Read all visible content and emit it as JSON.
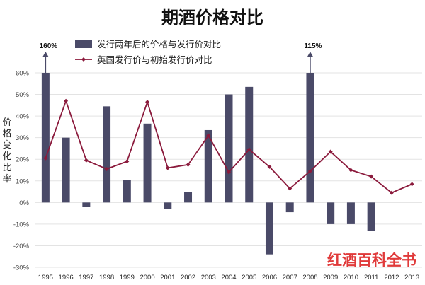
{
  "chart_data": {
    "type": "bar",
    "title": "期酒价格对比",
    "ylabel": "价格变化比率",
    "categories": [
      "1995",
      "1996",
      "1997",
      "1998",
      "1999",
      "2000",
      "2001",
      "2002",
      "2003",
      "2004",
      "2005",
      "2006",
      "2007",
      "2008",
      "2009",
      "2010",
      "2011",
      "2012",
      "2013"
    ],
    "ylim": [
      -30,
      60
    ],
    "yticks": [
      "60%",
      "50%",
      "40%",
      "30%",
      "20%",
      "10%",
      "0%",
      "-10%",
      "-20%",
      "-30%"
    ],
    "grid": true,
    "legend_position": "top",
    "series": [
      {
        "name": "发行两年后的价格与发行价对比",
        "type": "bar",
        "color": "#4a4a68",
        "values": [
          60,
          30,
          -2,
          44.5,
          10.5,
          36.5,
          -3,
          5,
          33.5,
          50,
          53.5,
          -24,
          -4.5,
          60,
          -10,
          -10,
          -13,
          null,
          null
        ]
      },
      {
        "name": "英国发行价与初始发行价对比",
        "type": "line",
        "color": "#8b1a3c",
        "values": [
          20.5,
          47,
          19.5,
          15.5,
          19,
          46.5,
          16,
          17.5,
          31,
          14,
          24.5,
          16.5,
          6.5,
          14.5,
          23.5,
          15,
          12,
          4.5,
          8.5
        ]
      }
    ],
    "annotations": [
      {
        "category": "1995",
        "text": "160%"
      },
      {
        "category": "2008",
        "text": "115%"
      }
    ]
  },
  "watermark": "红酒百科全书"
}
